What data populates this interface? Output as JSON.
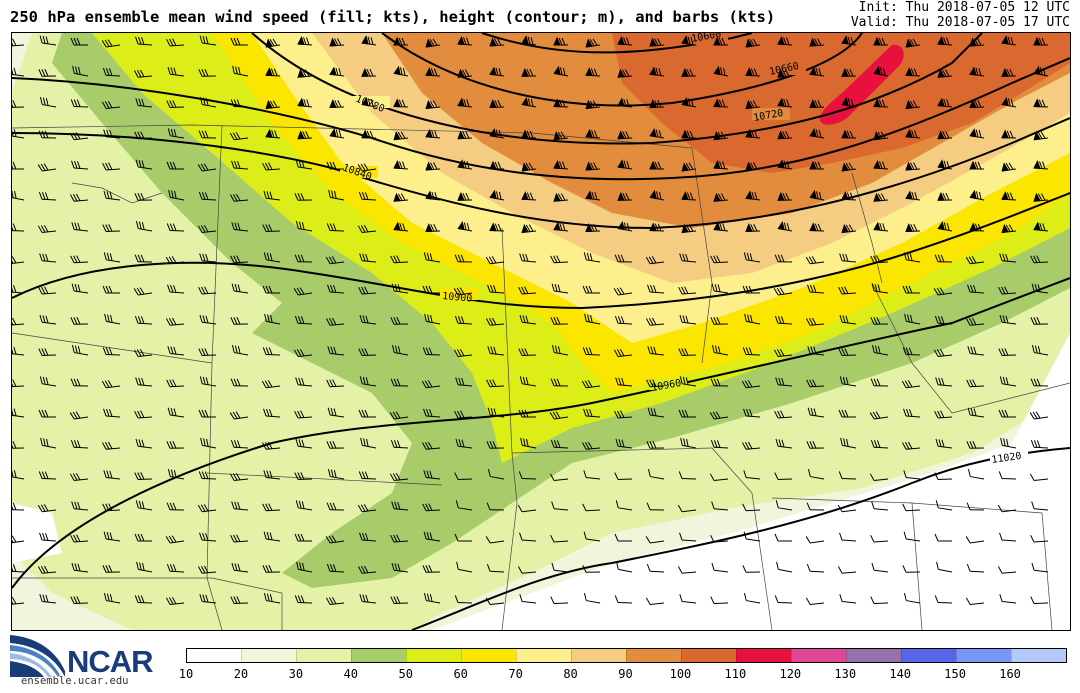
{
  "header": {
    "title": "250 hPa ensemble mean wind speed (fill; kts), height (contour; m), and barbs (kts)",
    "init": "Init: Thu 2018-07-05 12 UTC",
    "valid": "Valid: Thu 2018-07-05 17 UTC"
  },
  "map": {
    "contour_labels": [
      "10600",
      "10660",
      "10720",
      "10780",
      "10840",
      "10900",
      "10960",
      "11020"
    ]
  },
  "colorbar": {
    "ticks": [
      "10",
      "20",
      "30",
      "40",
      "50",
      "60",
      "70",
      "80",
      "90",
      "100",
      "110",
      "120",
      "130",
      "140",
      "150",
      "160"
    ],
    "colors": [
      "#ffffff",
      "#f0f5dc",
      "#e3f2a6",
      "#a8cc6a",
      "#dced18",
      "#fae600",
      "#fdf08c",
      "#f5cd82",
      "#e28c3e",
      "#d9692e",
      "#e8103c",
      "#e04696",
      "#9670aa",
      "#5a64e6",
      "#7896f5",
      "#b4c8fa"
    ]
  },
  "logo": {
    "name": "NCAR",
    "url": "ensemble.ucar.edu"
  }
}
